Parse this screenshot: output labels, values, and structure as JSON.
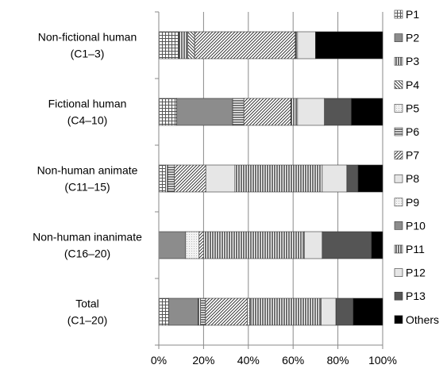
{
  "chart_data": {
    "type": "bar",
    "orientation": "horizontal",
    "stacked": "percent",
    "categories": [
      [
        "Non-fictional human",
        "(C1–3)"
      ],
      [
        "Fictional human",
        "(C4–10)"
      ],
      [
        "Non-human animate",
        "(C11–15)"
      ],
      [
        "Non-human inanimate",
        "(C16–20)"
      ],
      [
        "Total",
        "(C1–20)"
      ]
    ],
    "series": [
      {
        "name": "P1",
        "pattern": "grid",
        "values": [
          9,
          8,
          3,
          0,
          4
        ]
      },
      {
        "name": "P2",
        "pattern": "solid-gray",
        "values": [
          0,
          25,
          0,
          12,
          12
        ]
      },
      {
        "name": "P3",
        "pattern": "vlines",
        "values": [
          4,
          0,
          1,
          0,
          1
        ]
      },
      {
        "name": "P4",
        "pattern": "diag-down",
        "values": [
          3,
          0,
          0,
          0,
          0
        ]
      },
      {
        "name": "P5",
        "pattern": "dots",
        "values": [
          0,
          0,
          0,
          6,
          0
        ]
      },
      {
        "name": "P6",
        "pattern": "hlines",
        "values": [
          0,
          5,
          3,
          0,
          2
        ]
      },
      {
        "name": "P7",
        "pattern": "diag-up",
        "values": [
          45,
          21,
          14,
          2,
          17
        ]
      },
      {
        "name": "P8",
        "pattern": "light",
        "values": [
          0,
          0,
          13,
          0,
          0
        ]
      },
      {
        "name": "P9",
        "pattern": "dots",
        "values": [
          0,
          0,
          0,
          0,
          1
        ]
      },
      {
        "name": "P10",
        "pattern": "solid-gray",
        "values": [
          0,
          0,
          0,
          0,
          0
        ]
      },
      {
        "name": "P11",
        "pattern": "vlines",
        "values": [
          1,
          3,
          39,
          45,
          29
        ]
      },
      {
        "name": "P12",
        "pattern": "light",
        "values": [
          8,
          12,
          11,
          8,
          6
        ]
      },
      {
        "name": "P13",
        "pattern": "dark-gray",
        "values": [
          0,
          12,
          5,
          22,
          7
        ]
      },
      {
        "name": "Others",
        "pattern": "black",
        "values": [
          30,
          14,
          11,
          5,
          12
        ]
      }
    ],
    "xaxis": {
      "ticks": [
        0,
        20,
        40,
        60,
        80,
        100
      ],
      "tick_labels": [
        "0%",
        "20%",
        "40%",
        "60%",
        "80%",
        "100%"
      ],
      "range": [
        0,
        100
      ]
    },
    "title": "",
    "xlabel": "",
    "ylabel": "",
    "grid": "vertical",
    "legend_position": "right"
  }
}
